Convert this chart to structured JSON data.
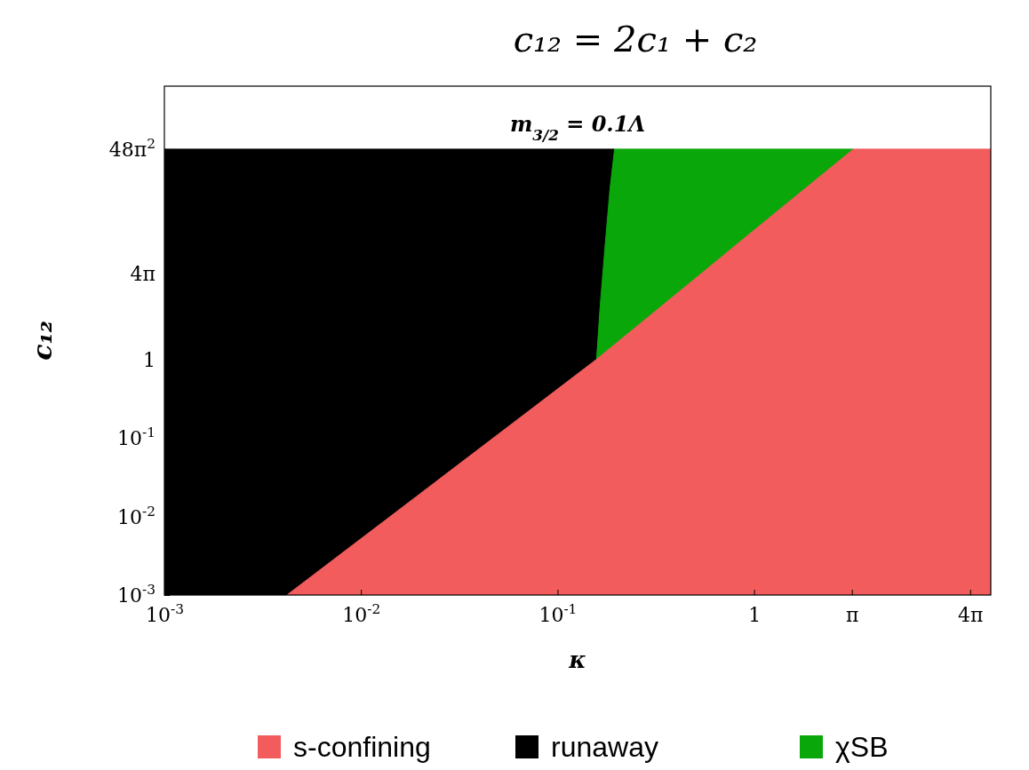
{
  "chart_data": {
    "type": "area",
    "title": "c₁₂ = 2c₁ + c₂",
    "xlabel": "κ",
    "ylabel": "c₁₂",
    "log": "xy",
    "legend": "bottom",
    "grid": false,
    "annotations": [
      "m$_{3/2}$ = 0.1Λ"
    ],
    "xlim": [
      0.001,
      16
    ],
    "ylim": [
      0.001,
      3000
    ],
    "xticks": [
      {
        "value": 0.001,
        "label": "10$^{-3}$"
      },
      {
        "value": 0.01,
        "label": "10$^{-2}$"
      },
      {
        "value": 0.1,
        "label": "10$^{-1}$"
      },
      1,
      {
        "value": 3.1416,
        "label": "π"
      },
      {
        "value": 12.566,
        "label": "4π"
      }
    ],
    "yticks": [
      {
        "value": 0.001,
        "label": "10$^{-3}$"
      },
      {
        "value": 0.01,
        "label": "10$^{-2}$"
      },
      {
        "value": 0.1,
        "label": "10$^{-1}$"
      },
      1,
      {
        "value": 12.566,
        "label": "4π"
      },
      {
        "value": 473.741,
        "label": "48π$^{2}$"
      }
    ],
    "series": [
      {
        "name": "s-confining",
        "color": "#f25c5c",
        "x": [
          0.0042,
          0.02,
          0.06,
          0.158,
          0.5,
          1,
          3.2,
          16
        ],
        "values": [
          0.001,
          0.0195,
          0.158,
          1,
          10.6,
          44,
          473.7,
          473.7
        ]
      },
      {
        "name": "runaway",
        "color": "#000000",
        "x": [
          0.001,
          0.195
        ],
        "values": [
          473.7,
          473.7
        ]
      },
      {
        "name": "χSB",
        "color": "#0aa70a",
        "x": [
          0.158,
          0.165,
          0.175,
          0.185,
          0.195,
          3.2
        ],
        "values": [
          1,
          5,
          30,
          150,
          473.7,
          473.7
        ]
      }
    ]
  }
}
